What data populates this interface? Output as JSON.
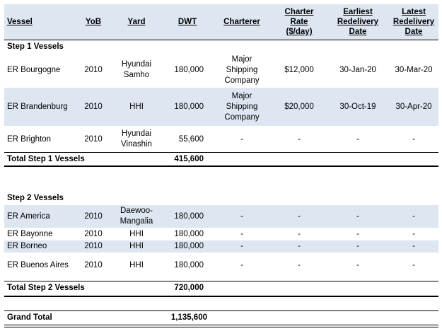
{
  "headers": {
    "vessel": "Vessel",
    "yob": "YoB",
    "yard": "Yard",
    "dwt": "DWT",
    "charterer": "Charterer",
    "rate": "Charter\nRate\n($/day)",
    "earliest": "Earliest\nRedelivery\nDate",
    "latest": "Latest\nRedelivery\nDate"
  },
  "step1": {
    "title": "Step 1 Vessels",
    "rows": [
      {
        "vessel": "ER Bourgogne",
        "yob": "2010",
        "yard": "Hyundai\nSamho",
        "dwt": "180,000",
        "charterer": "Major\nShipping\nCompany",
        "rate": "$12,000",
        "earliest": "30-Jan-20",
        "latest": "30-Mar-20"
      },
      {
        "vessel": "ER Brandenburg",
        "yob": "2010",
        "yard": "HHI",
        "dwt": "180,000",
        "charterer": "Major\nShipping\nCompany",
        "rate": "$20,000",
        "earliest": "30-Oct-19",
        "latest": "30-Apr-20"
      },
      {
        "vessel": "ER Brighton",
        "yob": "2010",
        "yard": "Hyundai\nVinashin",
        "dwt": "55,600",
        "charterer": "-",
        "rate": "-",
        "earliest": "-",
        "latest": "-"
      }
    ],
    "total_label": "Total Step 1 Vessels",
    "total_dwt": "415,600"
  },
  "step2": {
    "title": "Step 2 Vessels",
    "rows": [
      {
        "vessel": "ER America",
        "yob": "2010",
        "yard": "Daewoo-\nMangalia",
        "dwt": "180,000",
        "charterer": "-",
        "rate": "-",
        "earliest": "-",
        "latest": "-"
      },
      {
        "vessel": "ER Bayonne",
        "yob": "2010",
        "yard": "HHI",
        "dwt": "180,000",
        "charterer": "-",
        "rate": "-",
        "earliest": "-",
        "latest": "-"
      },
      {
        "vessel": "ER Borneo",
        "yob": "2010",
        "yard": "HHI",
        "dwt": "180,000",
        "charterer": "-",
        "rate": "-",
        "earliest": "-",
        "latest": "-"
      },
      {
        "vessel": "ER Buenos Aires",
        "yob": "2010",
        "yard": "HHI",
        "dwt": "180,000",
        "charterer": "-",
        "rate": "-",
        "earliest": "-",
        "latest": "-"
      }
    ],
    "total_label": "Total Step 2 Vessels",
    "total_dwt": "720,000"
  },
  "grand_total": {
    "label": "Grand Total",
    "dwt": "1,135,600"
  },
  "colors": {
    "band": "#dde6f1",
    "rule": "#000000"
  }
}
